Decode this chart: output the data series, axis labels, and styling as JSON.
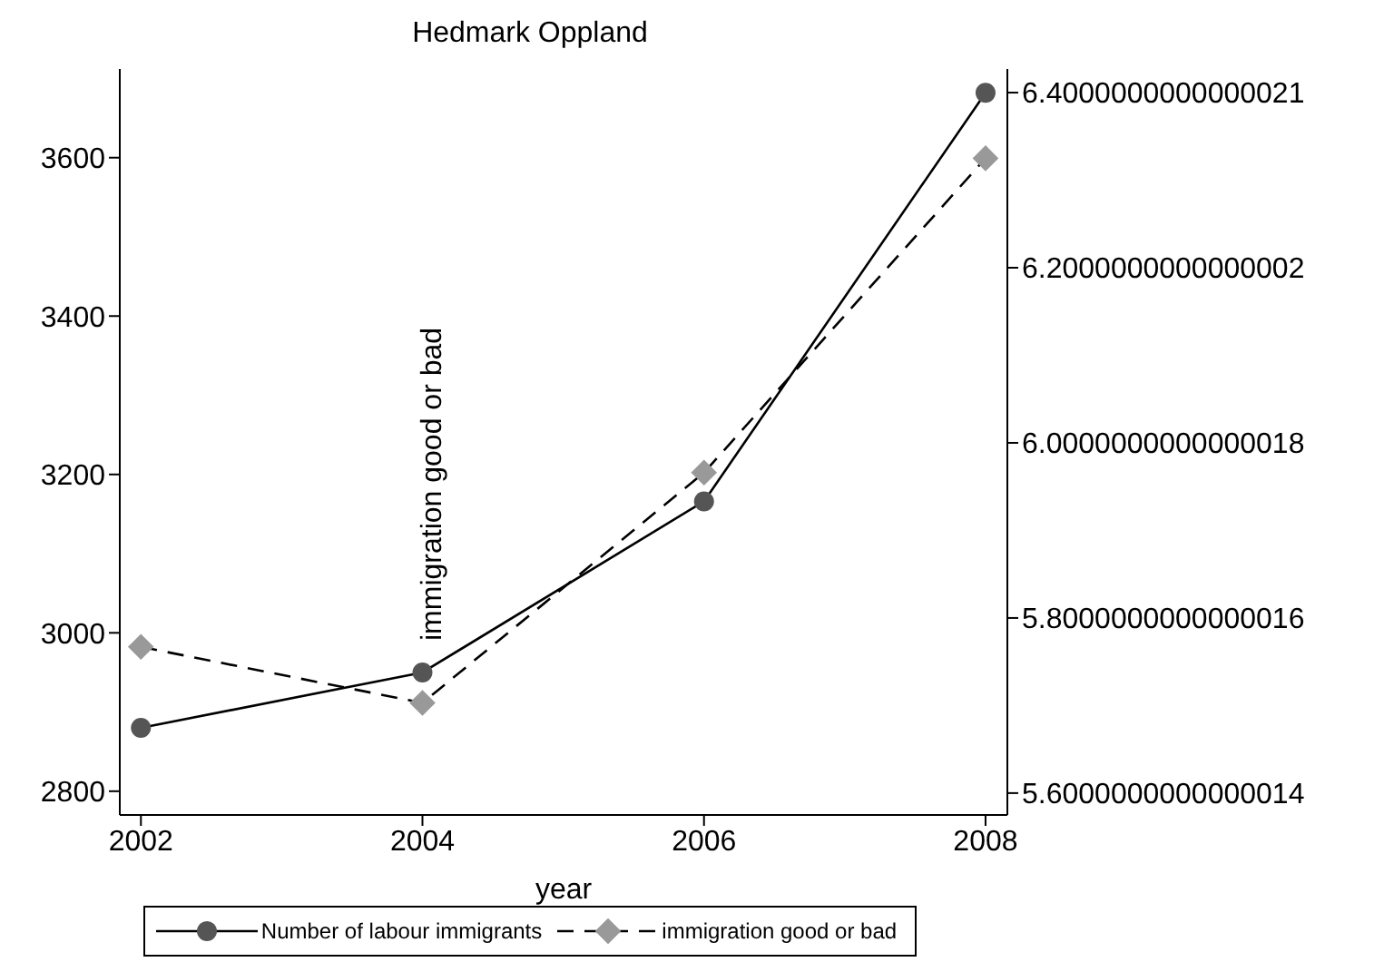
{
  "chart_data": {
    "type": "line",
    "title": "Hedmark Oppland",
    "xlabel": "year",
    "x": [
      2002,
      2004,
      2006,
      2008
    ],
    "xlim": [
      2001.85,
      2008.155
    ],
    "xticks": [
      2002,
      2004,
      2006,
      2008
    ],
    "ylim": [
      2770,
      3712
    ],
    "yticks": [
      2800,
      3000,
      3200,
      3400,
      3600
    ],
    "y2lim": [
      5.575,
      6.427
    ],
    "y2ticks": [
      {
        "value": 5.6,
        "label": "5.6000000000000014"
      },
      {
        "value": 5.8,
        "label": "5.8000000000000016"
      },
      {
        "value": 6.0,
        "label": "6.0000000000000018"
      },
      {
        "value": 6.2,
        "label": "6.2000000000000002"
      },
      {
        "value": 6.4,
        "label": "6.4000000000000021"
      }
    ],
    "series": [
      {
        "name": "Number of labour immigrants",
        "color": "#555555",
        "values": [
          2880,
          2950,
          3166,
          3682
        ],
        "marker": "circle",
        "line_style": "solid"
      },
      {
        "name": "immigration good or bad",
        "color": "#999999",
        "values": [
          5.767,
          5.703,
          5.966,
          6.325
        ],
        "axis": "y2",
        "marker": "diamond",
        "line_style": "dashed"
      }
    ],
    "annotations": [
      "immigration good or bad"
    ],
    "grid": false,
    "legend": "bottom"
  }
}
